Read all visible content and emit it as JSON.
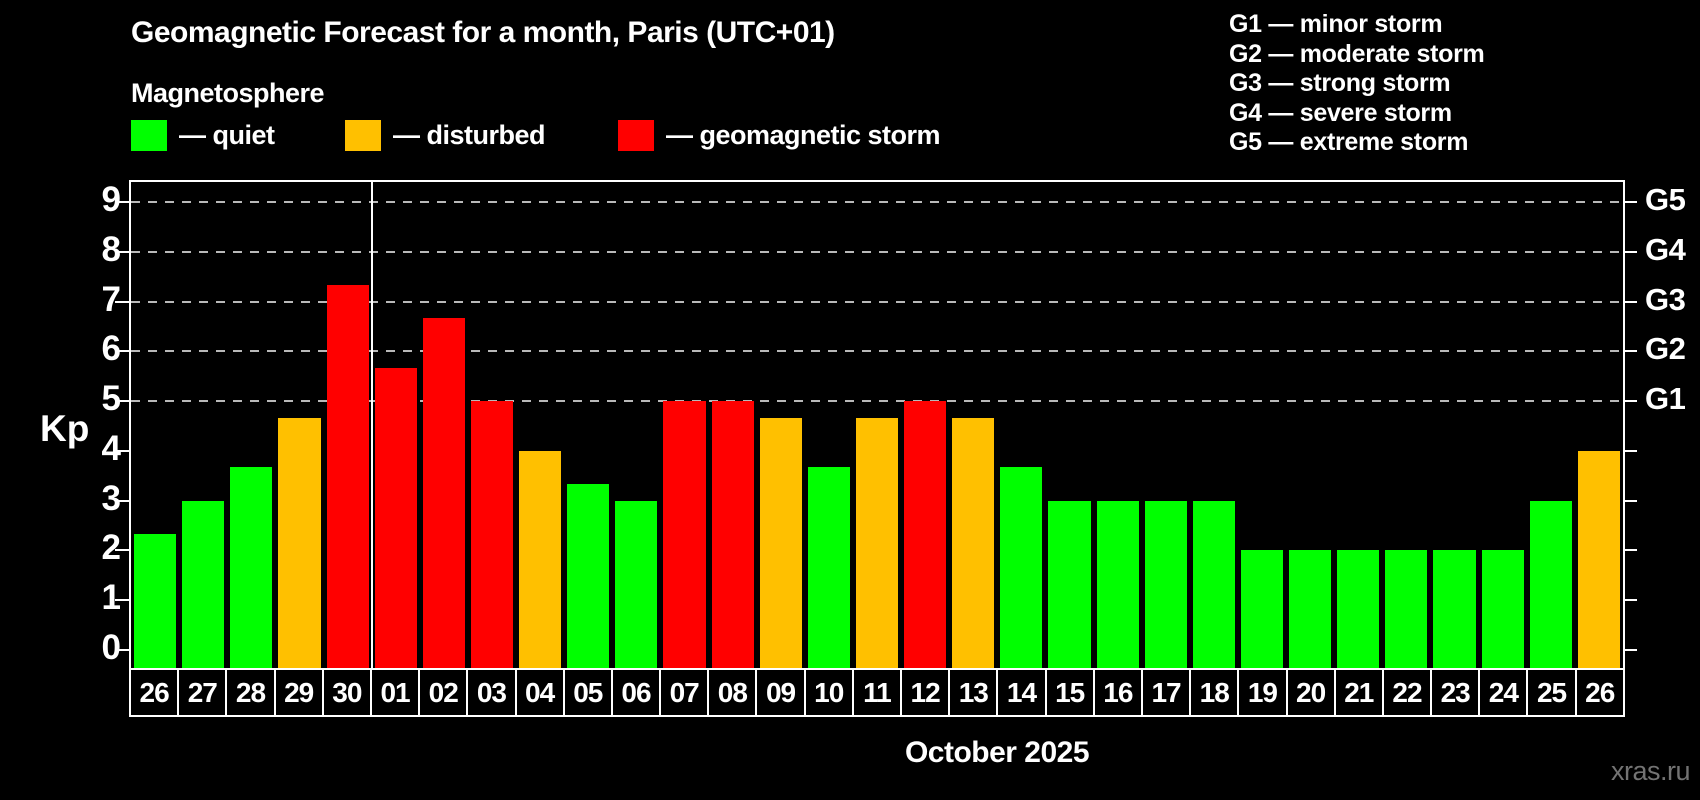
{
  "title": "Geomagnetic Forecast for a month, Paris (UTC+01)",
  "subtitle": "Magnetosphere",
  "legend": [
    {
      "name": "quiet",
      "label": "— quiet",
      "color": "#00ff00"
    },
    {
      "name": "disturbed",
      "label": "— disturbed",
      "color": "#ffc000"
    },
    {
      "name": "storm",
      "label": "— geomagnetic storm",
      "color": "#ff0000"
    }
  ],
  "g_legend": [
    "G1 — minor storm",
    "G2 — moderate storm",
    "G3 — strong storm",
    "G4 — severe storm",
    "G5 — extreme storm"
  ],
  "ylabel": "Kp",
  "month_label": "October 2025",
  "watermark": "xras.ru",
  "chart_data": {
    "type": "bar",
    "title": "Geomagnetic Forecast for a month, Paris (UTC+01)",
    "categories": [
      "26",
      "27",
      "28",
      "29",
      "30",
      "01",
      "02",
      "03",
      "04",
      "05",
      "06",
      "07",
      "08",
      "09",
      "10",
      "11",
      "12",
      "13",
      "14",
      "15",
      "16",
      "17",
      "18",
      "19",
      "20",
      "21",
      "22",
      "23",
      "24",
      "25",
      "26"
    ],
    "values": [
      2.33,
      3,
      3.67,
      4.67,
      7.33,
      5.67,
      6.67,
      5,
      4,
      3.33,
      3,
      5,
      5,
      4.67,
      3.67,
      4.67,
      5,
      4.67,
      3.67,
      3,
      3,
      3,
      3,
      2,
      2,
      2,
      2,
      2,
      2,
      3,
      4
    ],
    "statuses": [
      "quiet",
      "quiet",
      "quiet",
      "disturbed",
      "storm",
      "storm",
      "storm",
      "storm",
      "disturbed",
      "quiet",
      "quiet",
      "storm",
      "storm",
      "disturbed",
      "quiet",
      "disturbed",
      "storm",
      "disturbed",
      "quiet",
      "quiet",
      "quiet",
      "quiet",
      "quiet",
      "quiet",
      "quiet",
      "quiet",
      "quiet",
      "quiet",
      "quiet",
      "quiet",
      "disturbed"
    ],
    "status_colors": {
      "quiet": "#00ff00",
      "disturbed": "#ffc000",
      "storm": "#ff0000"
    },
    "yticks": [
      0,
      1,
      2,
      3,
      4,
      5,
      6,
      7,
      8,
      9
    ],
    "gridlines_at": [
      5,
      6,
      7,
      8,
      9
    ],
    "right_axis_labels": [
      {
        "value": 5,
        "label": "G1"
      },
      {
        "value": 6,
        "label": "G2"
      },
      {
        "value": 7,
        "label": "G3"
      },
      {
        "value": 8,
        "label": "G4"
      },
      {
        "value": 9,
        "label": "G5"
      }
    ],
    "ylim": [
      -0.36,
      9.41
    ],
    "xlabel": "October 2025",
    "month_boundary_after_index": 4,
    "grid": "dashed, horizontal, at G-levels only",
    "legend_position": "top"
  }
}
